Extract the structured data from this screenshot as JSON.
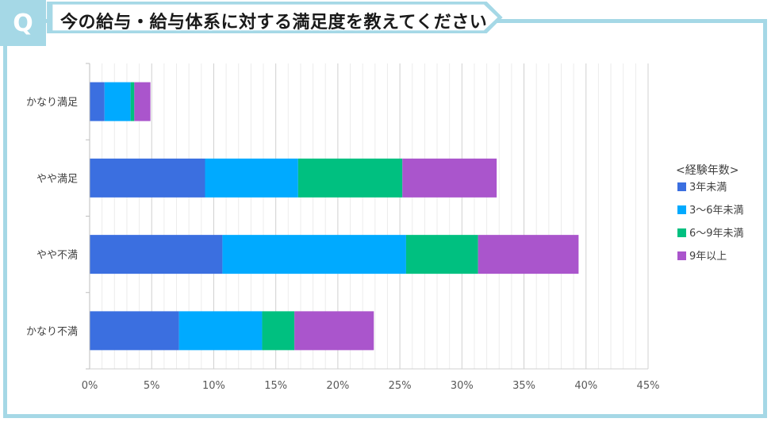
{
  "header": {
    "badge": "Q",
    "title": "今の給与・給与体系に対する満足度を教えてください"
  },
  "colors": {
    "frame": "#a5d8e6",
    "grid": "#d9d9d9"
  },
  "chart_data": {
    "type": "bar",
    "orientation": "horizontal",
    "stacked": true,
    "title": "",
    "categories": [
      "かなり満足",
      "やや満足",
      "やや不満",
      "かなり不満"
    ],
    "series": [
      {
        "name": "3年未満",
        "color": "#3b6fe0",
        "values": [
          1.2,
          9.3,
          10.7,
          7.2
        ]
      },
      {
        "name": "3〜6年未満",
        "color": "#00aaff",
        "values": [
          2.1,
          7.5,
          14.8,
          6.7
        ]
      },
      {
        "name": "6〜9年未満",
        "color": "#00c080",
        "values": [
          0.3,
          8.4,
          5.8,
          2.6
        ]
      },
      {
        "name": "9年以上",
        "color": "#aa55cc",
        "values": [
          1.3,
          7.6,
          8.1,
          6.4
        ]
      }
    ],
    "xlim": [
      0,
      45
    ],
    "xticks": [
      "0%",
      "5%",
      "10%",
      "15%",
      "20%",
      "25%",
      "30%",
      "35%",
      "40%",
      "45%"
    ],
    "grid": true,
    "legend_title": "<経験年数>",
    "legend_position": "right"
  }
}
